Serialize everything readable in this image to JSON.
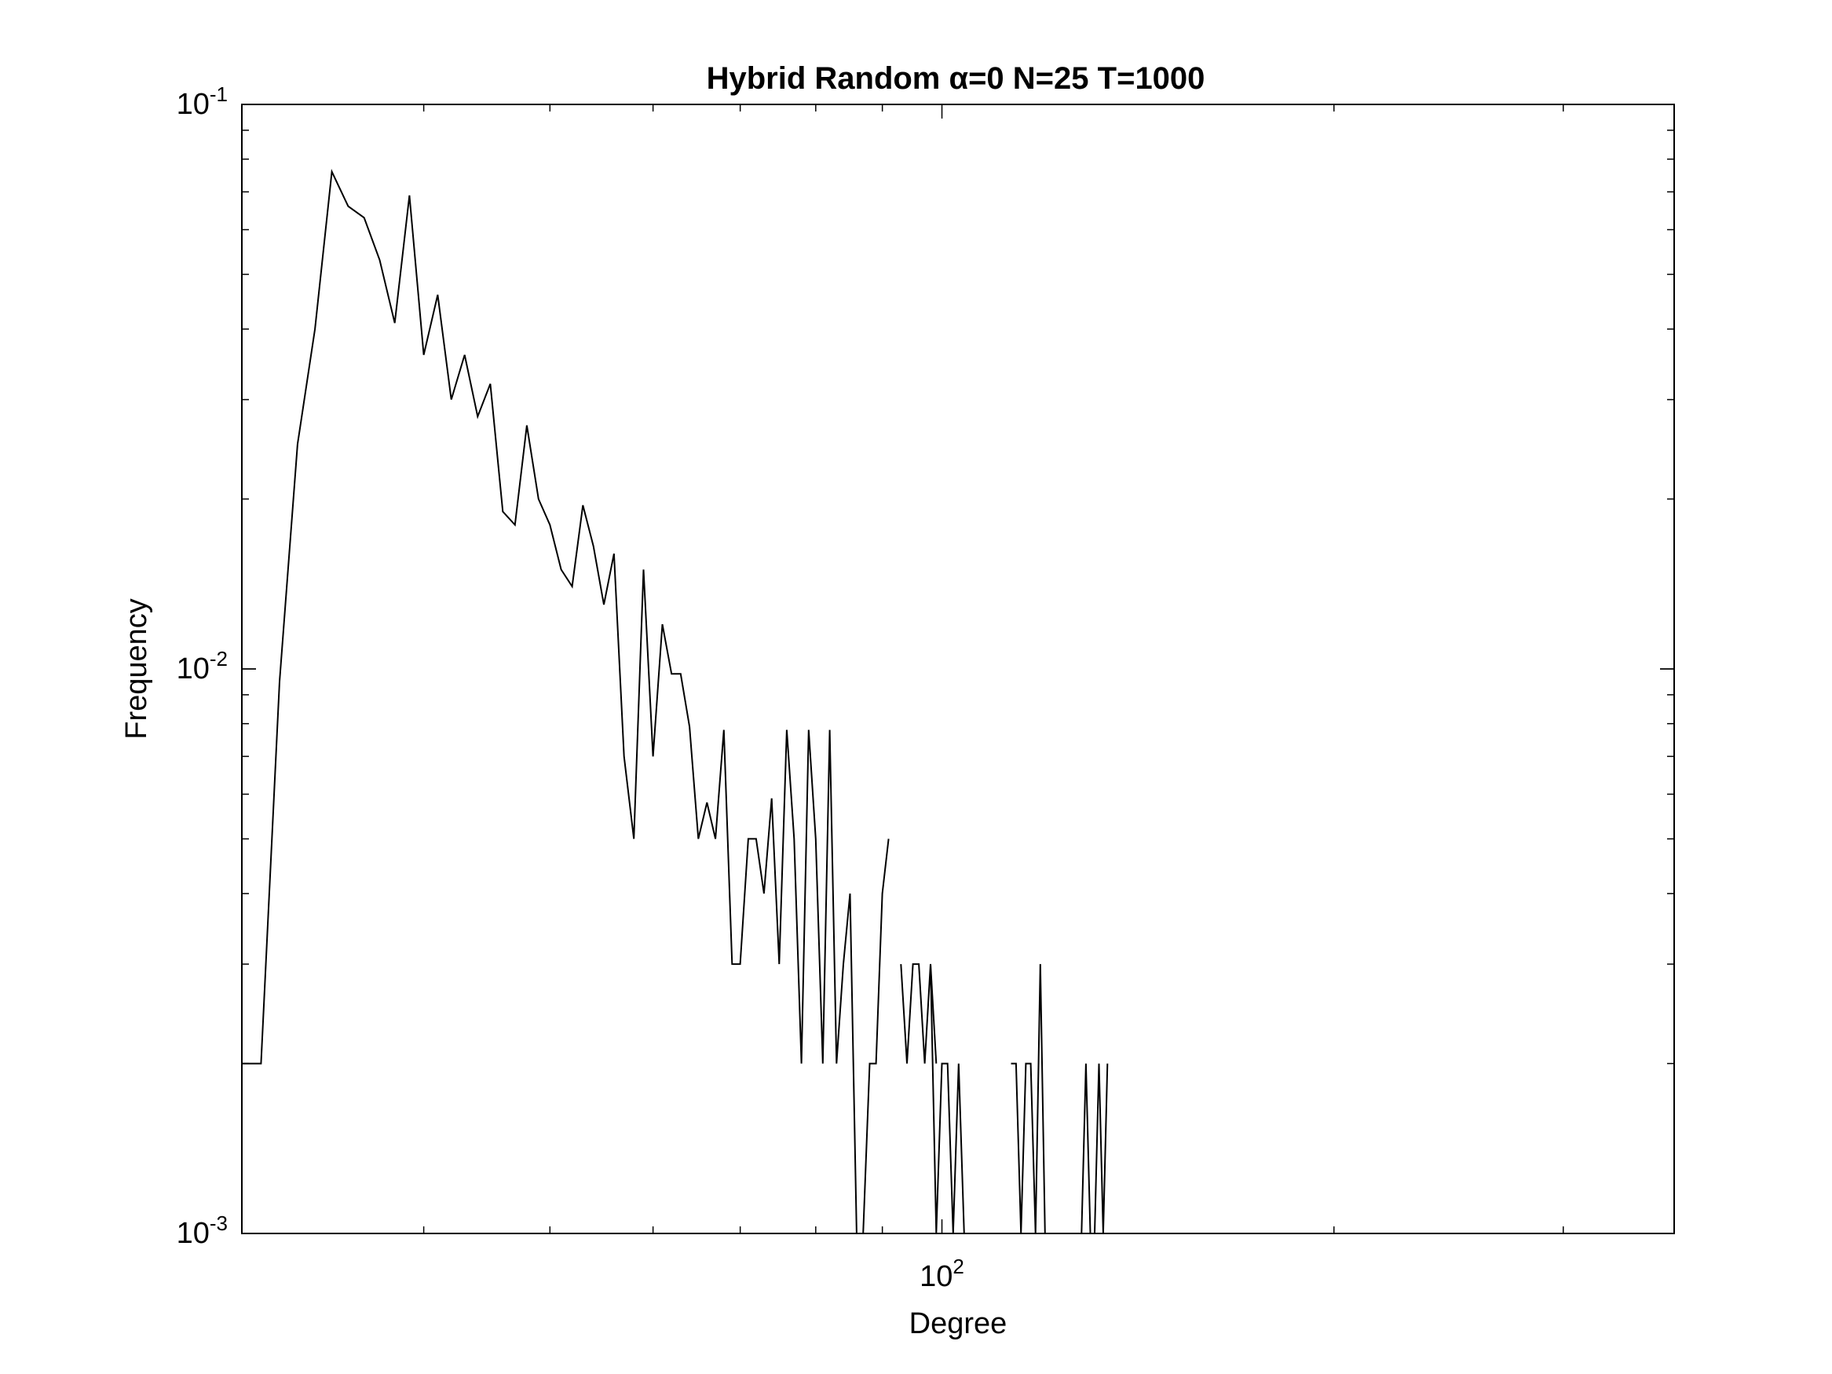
{
  "chart_data": {
    "type": "line",
    "title": "Hybrid Random α=0 N=25 T=1000",
    "xlabel": "Degree",
    "ylabel": "Frequency",
    "xscale": "log",
    "yscale": "log",
    "xlim": [
      29,
      365
    ],
    "ylim": [
      0.001,
      0.1
    ],
    "grid": false,
    "legend": "none",
    "line_color": "#000000",
    "x_ticks": [
      {
        "value": 100,
        "base": "10",
        "exp": "2"
      }
    ],
    "y_ticks": [
      {
        "value": 0.1,
        "base": "10",
        "exp": "-1"
      },
      {
        "value": 0.01,
        "base": "10",
        "exp": "-2"
      },
      {
        "value": 0.001,
        "base": "10",
        "exp": "-3"
      }
    ],
    "series": [
      {
        "segments": [
          [
            [
              29,
              0.002
            ],
            [
              30,
              0.002
            ],
            [
              31,
              0.0095
            ],
            [
              32,
              0.025
            ],
            [
              33,
              0.04
            ],
            [
              34,
              0.076
            ],
            [
              35,
              0.066
            ],
            [
              36,
              0.063
            ],
            [
              37,
              0.053
            ],
            [
              38,
              0.041
            ],
            [
              39,
              0.069
            ],
            [
              40,
              0.036
            ],
            [
              41,
              0.046
            ],
            [
              42,
              0.03
            ],
            [
              43,
              0.036
            ],
            [
              44,
              0.028
            ],
            [
              45,
              0.032
            ],
            [
              46,
              0.019
            ],
            [
              47,
              0.018
            ],
            [
              48,
              0.027
            ],
            [
              49,
              0.02
            ],
            [
              50,
              0.018
            ],
            [
              51,
              0.015
            ],
            [
              52,
              0.014
            ],
            [
              53,
              0.0195
            ],
            [
              54,
              0.0165
            ],
            [
              55,
              0.013
            ],
            [
              56,
              0.016
            ],
            [
              57,
              0.007
            ],
            [
              58,
              0.005
            ],
            [
              59,
              0.015
            ],
            [
              60,
              0.007
            ],
            [
              61,
              0.012
            ],
            [
              62,
              0.0098
            ],
            [
              63,
              0.0098
            ],
            [
              64,
              0.0079
            ],
            [
              65,
              0.005
            ],
            [
              66,
              0.0058
            ],
            [
              67,
              0.005
            ],
            [
              68,
              0.0078
            ],
            [
              69,
              0.003
            ],
            [
              70,
              0.003
            ],
            [
              71,
              0.005
            ],
            [
              72,
              0.005
            ],
            [
              73,
              0.004
            ],
            [
              74,
              0.0059
            ],
            [
              75,
              0.003
            ],
            [
              76,
              0.0078
            ],
            [
              77,
              0.005
            ],
            [
              78,
              0.002
            ],
            [
              79,
              0.0078
            ],
            [
              80,
              0.005
            ],
            [
              81,
              0.002
            ],
            [
              82,
              0.0078
            ],
            [
              83,
              0.002
            ],
            [
              84,
              0.003
            ],
            [
              85,
              0.004
            ],
            [
              86,
              0.001
            ],
            [
              87,
              0.001
            ],
            [
              88,
              0.002
            ],
            [
              89,
              0.002
            ],
            [
              90,
              0.004
            ],
            [
              91,
              0.005
            ]
          ],
          [
            [
              93,
              0.003
            ],
            [
              94,
              0.002
            ],
            [
              95,
              0.003
            ],
            [
              96,
              0.003
            ],
            [
              97,
              0.002
            ],
            [
              98,
              0.003
            ],
            [
              99,
              0.001
            ],
            [
              100,
              0.002
            ],
            [
              101,
              0.002
            ],
            [
              102,
              0.001
            ],
            [
              103,
              0.002
            ],
            [
              104,
              0.001
            ],
            [
              105,
              0.001
            ]
          ],
          [
            [
              98,
              0.003
            ],
            [
              99,
              0.002
            ]
          ],
          [
            [
              113,
              0.002
            ],
            [
              114,
              0.002
            ],
            [
              115,
              0.001
            ],
            [
              116,
              0.002
            ],
            [
              117,
              0.002
            ],
            [
              118,
              0.001
            ],
            [
              119,
              0.003
            ],
            [
              120,
              0.001
            ],
            [
              121,
              0.001
            ]
          ],
          [
            [
              127,
              0.001
            ],
            [
              128,
              0.001
            ],
            [
              129,
              0.002
            ],
            [
              130,
              0.001
            ],
            [
              131,
              0.001
            ],
            [
              132,
              0.002
            ],
            [
              133,
              0.001
            ],
            [
              134,
              0.002
            ]
          ],
          [
            [
              156,
              0.001
            ],
            [
              157,
              0.001
            ]
          ]
        ]
      }
    ]
  }
}
